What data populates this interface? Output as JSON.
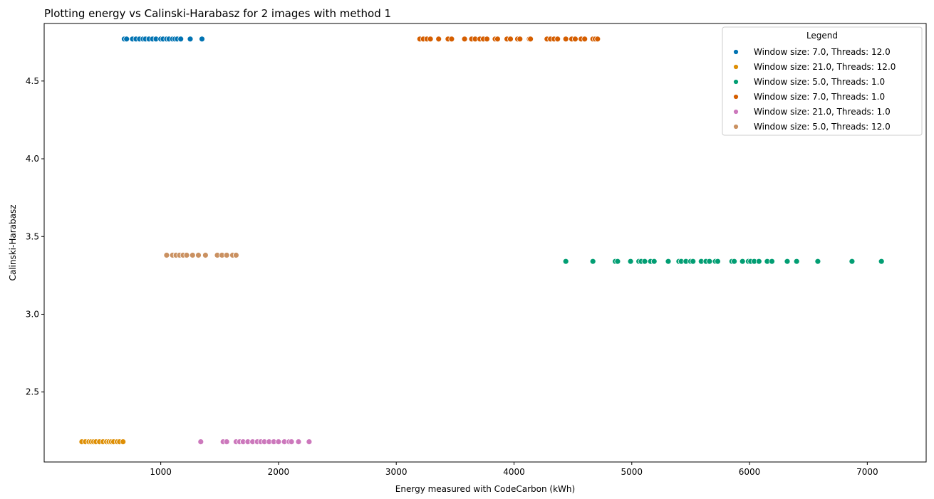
{
  "chart_data": {
    "type": "scatter",
    "title": "Plotting energy vs Calinski-Harabasz for 2 images with method 1",
    "xlabel": "Energy measured with CodeCarbon (kWh)",
    "ylabel": "Calinski-Harabasz",
    "xlim": [
      10,
      7500
    ],
    "ylim": [
      2.05,
      4.87
    ],
    "xticks": [
      1000,
      2000,
      3000,
      4000,
      5000,
      6000,
      7000
    ],
    "yticks": [
      2.5,
      3.0,
      3.5,
      4.0,
      4.5
    ],
    "xtick_labels": [
      "1000",
      "2000",
      "3000",
      "4000",
      "5000",
      "6000",
      "7000"
    ],
    "ytick_labels": [
      "2.5",
      "3.0",
      "3.5",
      "4.0",
      "4.5"
    ],
    "grid": false,
    "legend": {
      "title": "Legend",
      "position": "top-right"
    },
    "series": [
      {
        "name": "Window size: 7.0, Threads: 12.0",
        "color": "#0173b2",
        "y": 4.77,
        "x": [
          690,
          710,
          760,
          790,
          820,
          850,
          870,
          900,
          930,
          960,
          1000,
          1020,
          1050,
          1070,
          1100,
          1120,
          1140,
          1170,
          1250,
          1350
        ]
      },
      {
        "name": "Window size: 21.0, Threads: 12.0",
        "color": "#de8f05",
        "y": 2.18,
        "x": [
          330,
          360,
          390,
          410,
          430,
          450,
          480,
          510,
          540,
          560,
          580,
          600,
          630,
          650,
          680
        ]
      },
      {
        "name": "Window size: 5.0, Threads: 1.0",
        "color": "#029e73",
        "y": 3.34,
        "x": [
          4440,
          4670,
          4860,
          4880,
          4990,
          5060,
          5080,
          5110,
          5160,
          5190,
          5310,
          5400,
          5420,
          5460,
          5500,
          5520,
          5590,
          5630,
          5660,
          5710,
          5730,
          5850,
          5870,
          5940,
          5990,
          6010,
          6040,
          6080,
          6150,
          6190,
          6320,
          6400,
          6580,
          6870,
          7120
        ]
      },
      {
        "name": "Window size: 7.0, Threads: 1.0",
        "color": "#d55e00",
        "y": 4.77,
        "x": [
          3200,
          3230,
          3260,
          3290,
          3360,
          3440,
          3470,
          3580,
          3640,
          3670,
          3710,
          3740,
          3770,
          3840,
          3860,
          3940,
          3970,
          4030,
          4050,
          4130,
          4140,
          4280,
          4310,
          4340,
          4370,
          4440,
          4490,
          4520,
          4570,
          4600,
          4670,
          4690,
          4710
        ]
      },
      {
        "name": "Window size: 21.0, Threads: 1.0",
        "color": "#cc78bc",
        "y": 2.18,
        "x": [
          1340,
          1530,
          1560,
          1640,
          1670,
          1700,
          1740,
          1780,
          1820,
          1850,
          1880,
          1920,
          1960,
          2000,
          2050,
          2090,
          2110,
          2170,
          2260
        ]
      },
      {
        "name": "Window size: 5.0, Threads: 12.0",
        "color": "#ca9161",
        "y": 3.38,
        "x": [
          1050,
          1100,
          1130,
          1160,
          1190,
          1220,
          1270,
          1320,
          1380,
          1480,
          1520,
          1560,
          1610,
          1640
        ]
      }
    ]
  }
}
